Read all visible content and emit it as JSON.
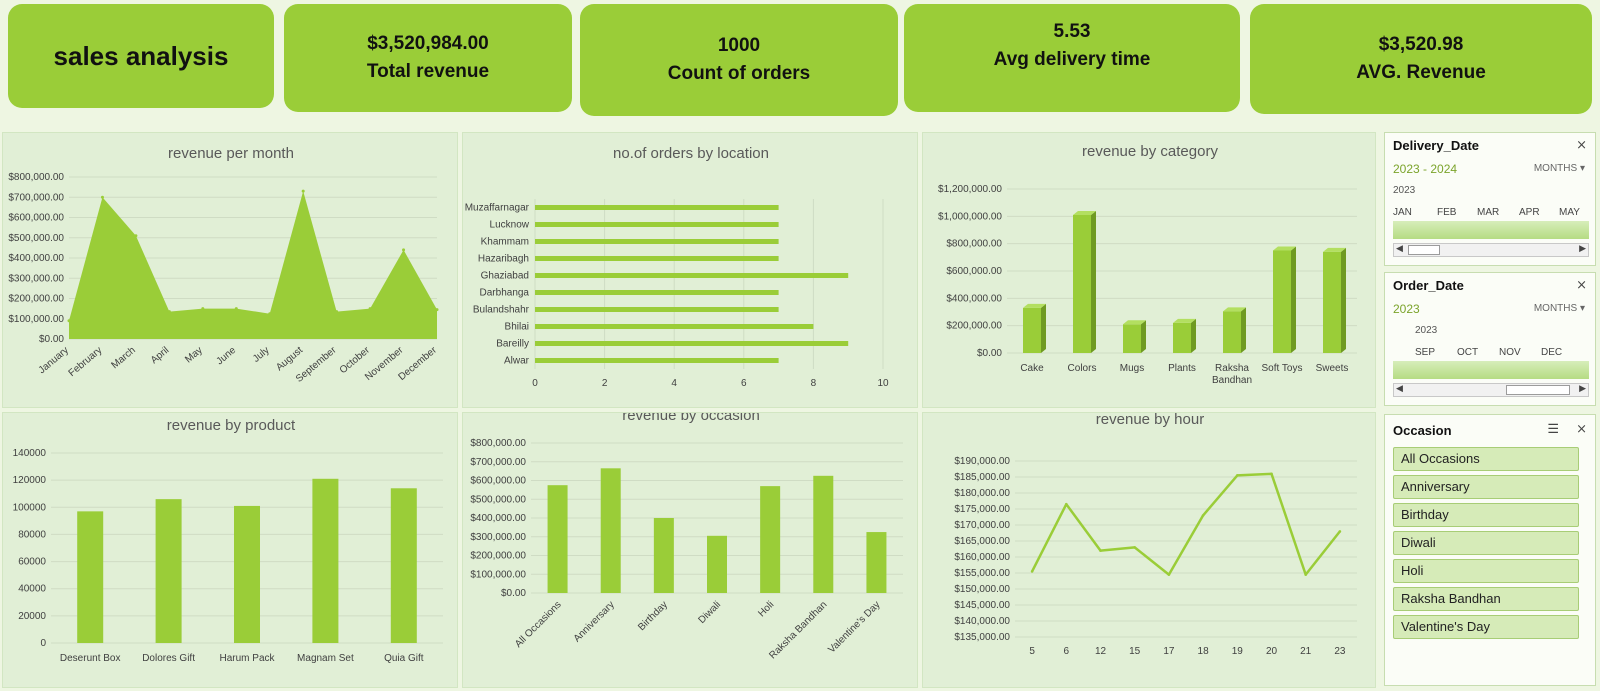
{
  "kpis": {
    "title": "sales analysis",
    "total_revenue": {
      "value": "$3,520,984.00",
      "label": "Total revenue"
    },
    "count_orders": {
      "value": "1000",
      "label": "Count of orders"
    },
    "avg_delivery": {
      "value": "5.53",
      "label": "Avg delivery time"
    },
    "avg_revenue": {
      "value": "$3,520.98",
      "label": "AVG. Revenue"
    }
  },
  "chart_data": [
    {
      "id": "month",
      "type": "area",
      "title": "revenue per month",
      "categories": [
        "January",
        "February",
        "March",
        "April",
        "May",
        "June",
        "July",
        "August",
        "September",
        "October",
        "November",
        "December"
      ],
      "values": [
        90000,
        700000,
        510000,
        135000,
        150000,
        150000,
        125000,
        730000,
        135000,
        150000,
        440000,
        145000
      ],
      "ylim": [
        0,
        800000
      ],
      "ticks": [
        0,
        100000,
        200000,
        300000,
        400000,
        500000,
        600000,
        700000,
        800000
      ],
      "tick_labels": [
        "$0.00",
        "$100,000.00",
        "$200,000.00",
        "$300,000.00",
        "$400,000.00",
        "$500,000.00",
        "$600,000.00",
        "$700,000.00",
        "$800,000.00"
      ],
      "grid": true,
      "color": "#9acd38"
    },
    {
      "id": "location",
      "type": "bar",
      "orientation": "horizontal",
      "title": "no.of orders by location",
      "categories": [
        "Muzaffarnagar",
        "Lucknow",
        "Khammam",
        "Hazaribagh",
        "Ghaziabad",
        "Darbhanga",
        "Bulandshahr",
        "Bhilai",
        "Bareilly",
        "Alwar"
      ],
      "values": [
        7,
        7,
        7,
        7,
        9,
        7,
        7,
        8,
        9,
        7
      ],
      "xlim": [
        0,
        10
      ],
      "ticks": [
        0,
        2,
        4,
        6,
        8,
        10
      ],
      "tick_labels": [
        "0",
        "2",
        "4",
        "6",
        "8",
        "10"
      ],
      "grid": true,
      "color": "#9acd38"
    },
    {
      "id": "category",
      "type": "bar",
      "title": "revenue by category",
      "categories": [
        "Cake",
        "Colors",
        "Mugs",
        "Plants",
        "Raksha Bandhan",
        "Soft Toys",
        "Sweets"
      ],
      "category_lines": [
        [
          "Cake"
        ],
        [
          "Colors"
        ],
        [
          "Mugs"
        ],
        [
          "Plants"
        ],
        [
          "Raksha",
          "Bandhan"
        ],
        [
          "Soft Toys"
        ],
        [
          "Sweets"
        ]
      ],
      "values": [
        330000,
        1010000,
        210000,
        220000,
        305000,
        750000,
        740000
      ],
      "ylim": [
        0,
        1200000
      ],
      "ticks": [
        0,
        200000,
        400000,
        600000,
        800000,
        1000000,
        1200000
      ],
      "tick_labels": [
        "$0.00",
        "$200,000.00",
        "$400,000.00",
        "$600,000.00",
        "$800,000.00",
        "$1,000,000.00",
        "$1,200,000.00"
      ],
      "grid": true,
      "color": "#9acd38"
    },
    {
      "id": "product",
      "type": "bar",
      "title": "revenue by product",
      "categories": [
        "Deserunt Box",
        "Dolores Gift",
        "Harum Pack",
        "Magnam Set",
        "Quia Gift"
      ],
      "values": [
        97000,
        106000,
        101000,
        121000,
        114000
      ],
      "ylim": [
        0,
        140000
      ],
      "ticks": [
        0,
        20000,
        40000,
        60000,
        80000,
        100000,
        120000,
        140000
      ],
      "tick_labels": [
        "0",
        "20000",
        "40000",
        "60000",
        "80000",
        "100000",
        "120000",
        "140000"
      ],
      "grid": true,
      "color": "#9acd38"
    },
    {
      "id": "occasion",
      "type": "bar",
      "title": "revenue by occasion",
      "categories": [
        "All Occasions",
        "Anniversary",
        "Birthday",
        "Diwali",
        "Holi",
        "Raksha Bandhan",
        "Valentine's Day"
      ],
      "values": [
        575000,
        665000,
        400000,
        305000,
        570000,
        625000,
        325000
      ],
      "ylim": [
        0,
        800000
      ],
      "ticks": [
        0,
        100000,
        200000,
        300000,
        400000,
        500000,
        600000,
        700000,
        800000
      ],
      "tick_labels": [
        "$0.00",
        "$100,000.00",
        "$200,000.00",
        "$300,000.00",
        "$400,000.00",
        "$500,000.00",
        "$600,000.00",
        "$700,000.00",
        "$800,000.00"
      ],
      "grid": true,
      "color": "#9acd38"
    },
    {
      "id": "hour",
      "type": "line",
      "title": "revenue by hour",
      "categories": [
        "5",
        "6",
        "12",
        "15",
        "17",
        "18",
        "19",
        "20",
        "21",
        "23"
      ],
      "values": [
        155500,
        176500,
        162000,
        163000,
        154500,
        173000,
        185500,
        186000,
        154500,
        168000
      ],
      "ylim": [
        135000,
        190000
      ],
      "ticks": [
        135000,
        140000,
        145000,
        150000,
        155000,
        160000,
        165000,
        170000,
        175000,
        180000,
        185000,
        190000
      ],
      "tick_labels": [
        "$135,000.00",
        "$140,000.00",
        "$145,000.00",
        "$150,000.00",
        "$155,000.00",
        "$160,000.00",
        "$165,000.00",
        "$170,000.00",
        "$175,000.00",
        "$180,000.00",
        "$185,000.00",
        "$190,000.00"
      ],
      "grid": true,
      "color": "#9acd38"
    }
  ],
  "slicers": {
    "delivery": {
      "header": "Delivery_Date",
      "range": "2023 - 2024",
      "level": "MONTHS",
      "year": "2023",
      "months": [
        "JAN",
        "FEB",
        "MAR",
        "APR",
        "MAY"
      ]
    },
    "order": {
      "header": "Order_Date",
      "range": "2023",
      "level": "MONTHS",
      "year": "2023",
      "months": [
        "SEP",
        "OCT",
        "NOV",
        "DEC"
      ]
    },
    "occasion": {
      "header": "Occasion",
      "items": [
        "All Occasions",
        "Anniversary",
        "Birthday",
        "Diwali",
        "Holi",
        "Raksha Bandhan",
        "Valentine's Day"
      ]
    }
  }
}
